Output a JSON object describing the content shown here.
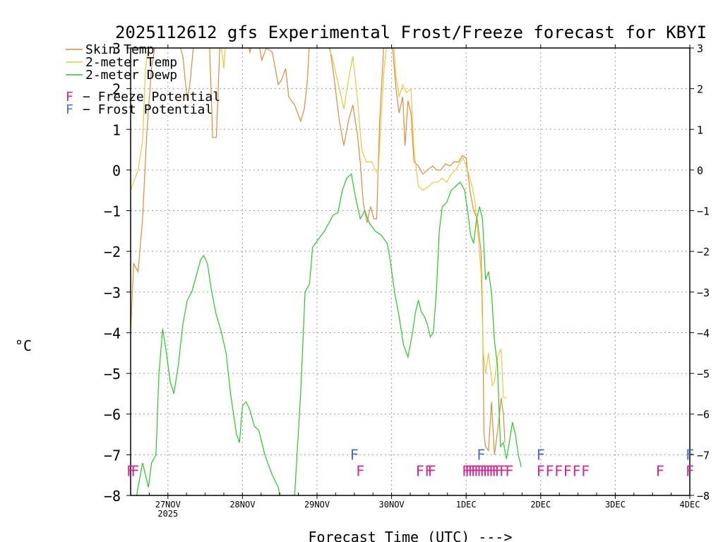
{
  "chart_data": {
    "type": "line",
    "title": "2025112612 gfs Experimental Frost/Freeze forecast for KBYI",
    "xlabel": "Forecast Time (UTC) --->",
    "ylabel": "°C",
    "ylim": [
      -8,
      3
    ],
    "xlim": [
      0.0,
      7.5
    ],
    "grid": true,
    "y_ticks": [
      -8,
      -7,
      -6,
      -5,
      -4,
      -3,
      -2,
      -1,
      0,
      1,
      2,
      3
    ],
    "y_tick_labels": [
      "−8",
      "−7",
      "−6",
      "−5",
      "−4",
      "−3",
      "−2",
      "−1",
      "0",
      "1",
      "2",
      "3"
    ],
    "x_ticks": [
      {
        "x": 0.5,
        "label": "27NOV",
        "sublabel": "2025"
      },
      {
        "x": 1.5,
        "label": "28NOV",
        "sublabel": ""
      },
      {
        "x": 2.5,
        "label": "29NOV",
        "sublabel": ""
      },
      {
        "x": 3.5,
        "label": "30NOV",
        "sublabel": ""
      },
      {
        "x": 4.5,
        "label": "1DEC",
        "sublabel": ""
      },
      {
        "x": 5.5,
        "label": "2DEC",
        "sublabel": ""
      },
      {
        "x": 6.5,
        "label": "3DEC",
        "sublabel": ""
      },
      {
        "x": 7.5,
        "label": "4DEC",
        "sublabel": ""
      }
    ],
    "colors": {
      "skin": "#e08a3c",
      "t2m": "#e8c83c",
      "dewp": "#28c828",
      "freeze": "#d02890",
      "frost": "#4a6ed0"
    },
    "legend": {
      "position": "top-left",
      "items": [
        "Skin Temp",
        "2-meter Temp",
        "2-meter Dewp"
      ],
      "marker_letter": "F",
      "freeze_text": "− Freeze Potential",
      "frost_text": "− Frost Potential"
    },
    "series": [
      {
        "name": "Skin Temp",
        "color_key": "skin",
        "points": [
          [
            0.0,
            -4.0
          ],
          [
            0.04,
            -2.3
          ],
          [
            0.1,
            -2.5
          ],
          [
            0.16,
            -1.2
          ],
          [
            0.22,
            1.0
          ],
          [
            0.28,
            2.5
          ],
          [
            0.34,
            3.2
          ],
          [
            0.62,
            3.3
          ],
          [
            0.7,
            2.8
          ],
          [
            0.76,
            1.7
          ],
          [
            0.8,
            2.2
          ],
          [
            0.86,
            3.4
          ],
          [
            1.05,
            3.5
          ],
          [
            1.1,
            0.8
          ],
          [
            1.15,
            0.8
          ],
          [
            1.2,
            3.2
          ],
          [
            1.55,
            3.3
          ],
          [
            1.6,
            2.9
          ],
          [
            1.65,
            3.2
          ],
          [
            1.72,
            3.1
          ],
          [
            1.76,
            2.7
          ],
          [
            1.82,
            3.0
          ],
          [
            1.9,
            2.9
          ],
          [
            1.95,
            2.4
          ],
          [
            1.98,
            2.1
          ],
          [
            2.02,
            2.2
          ],
          [
            2.08,
            2.5
          ],
          [
            2.12,
            1.8
          ],
          [
            2.2,
            1.6
          ],
          [
            2.28,
            1.2
          ],
          [
            2.33,
            1.5
          ],
          [
            2.37,
            2.2
          ],
          [
            2.4,
            3.2
          ],
          [
            2.65,
            3.3
          ],
          [
            2.72,
            2.4
          ],
          [
            2.8,
            1.2
          ],
          [
            2.86,
            0.6
          ],
          [
            2.92,
            1.2
          ],
          [
            2.98,
            1.6
          ],
          [
            3.04,
            0.9
          ],
          [
            3.08,
            0.2
          ],
          [
            3.12,
            -0.8
          ],
          [
            3.17,
            -1.3
          ],
          [
            3.22,
            -0.9
          ],
          [
            3.26,
            -1.2
          ],
          [
            3.3,
            -1.2
          ],
          [
            3.34,
            1.2
          ],
          [
            3.4,
            3.2
          ],
          [
            3.5,
            3.3
          ],
          [
            3.56,
            2.0
          ],
          [
            3.6,
            1.4
          ],
          [
            3.65,
            1.8
          ],
          [
            3.68,
            0.6
          ],
          [
            3.72,
            1.7
          ],
          [
            3.76,
            1.4
          ],
          [
            3.8,
            0.2
          ],
          [
            3.86,
            0.1
          ],
          [
            3.92,
            -0.1
          ],
          [
            3.98,
            0.0
          ],
          [
            4.05,
            0.1
          ],
          [
            4.1,
            0.0
          ],
          [
            4.16,
            0.0
          ],
          [
            4.22,
            0.15
          ],
          [
            4.28,
            0.1
          ],
          [
            4.34,
            0.2
          ],
          [
            4.4,
            0.2
          ],
          [
            4.45,
            0.35
          ],
          [
            4.5,
            0.3
          ],
          [
            4.55,
            -0.5
          ],
          [
            4.6,
            -1.0
          ],
          [
            4.65,
            -1.2
          ],
          [
            4.7,
            -2.0
          ],
          [
            4.72,
            -3.5
          ],
          [
            4.74,
            -6.5
          ],
          [
            4.76,
            -6.8
          ],
          [
            4.8,
            -6.9
          ],
          [
            4.84,
            -5.7
          ],
          [
            4.88,
            -7.0
          ],
          [
            4.93,
            -6.3
          ],
          [
            4.97,
            -5.6
          ],
          [
            5.0,
            -6.0
          ],
          [
            5.02,
            -6.7
          ]
        ]
      },
      {
        "name": "2-meter Temp",
        "color_key": "t2m",
        "points": [
          [
            0.0,
            -0.5
          ],
          [
            0.04,
            -0.3
          ],
          [
            0.1,
            0.0
          ],
          [
            0.16,
            0.7
          ],
          [
            0.2,
            2.5
          ],
          [
            0.26,
            3.3
          ],
          [
            1.2,
            3.3
          ],
          [
            1.25,
            2.5
          ],
          [
            1.28,
            3.3
          ],
          [
            2.6,
            3.3
          ],
          [
            2.7,
            2.8
          ],
          [
            2.8,
            2.0
          ],
          [
            2.86,
            1.5
          ],
          [
            2.92,
            2.2
          ],
          [
            2.98,
            2.8
          ],
          [
            3.04,
            1.8
          ],
          [
            3.1,
            0.5
          ],
          [
            3.16,
            0.2
          ],
          [
            3.24,
            0.2
          ],
          [
            3.28,
            0.0
          ],
          [
            3.32,
            -0.1
          ],
          [
            3.35,
            1.0
          ],
          [
            3.4,
            2.5
          ],
          [
            3.45,
            3.3
          ],
          [
            3.52,
            3.3
          ],
          [
            3.56,
            2.3
          ],
          [
            3.6,
            1.8
          ],
          [
            3.65,
            2.1
          ],
          [
            3.7,
            1.9
          ],
          [
            3.76,
            2.0
          ],
          [
            3.8,
            0.5
          ],
          [
            3.86,
            -0.4
          ],
          [
            3.92,
            -0.5
          ],
          [
            4.0,
            -0.4
          ],
          [
            4.06,
            -0.3
          ],
          [
            4.12,
            -0.3
          ],
          [
            4.18,
            -0.2
          ],
          [
            4.24,
            -0.3
          ],
          [
            4.3,
            -0.1
          ],
          [
            4.36,
            0.0
          ],
          [
            4.42,
            0.2
          ],
          [
            4.46,
            0.3
          ],
          [
            4.52,
            0.0
          ],
          [
            4.58,
            -0.4
          ],
          [
            4.62,
            -0.8
          ],
          [
            4.66,
            -1.6
          ],
          [
            4.7,
            -2.5
          ],
          [
            4.73,
            -4.5
          ],
          [
            4.76,
            -5.0
          ],
          [
            4.8,
            -4.5
          ],
          [
            4.85,
            -5.3
          ],
          [
            4.88,
            -5.2
          ],
          [
            4.92,
            -4.6
          ],
          [
            4.97,
            -4.4
          ],
          [
            5.0,
            -5.6
          ],
          [
            5.04,
            -5.6
          ]
        ]
      },
      {
        "name": "2-meter Dewp",
        "color_key": "dewp",
        "points": [
          [
            0.08,
            -8.0
          ],
          [
            0.12,
            -7.6
          ],
          [
            0.16,
            -7.2
          ],
          [
            0.2,
            -7.5
          ],
          [
            0.24,
            -7.8
          ],
          [
            0.28,
            -7.2
          ],
          [
            0.34,
            -7.0
          ],
          [
            0.38,
            -5.0
          ],
          [
            0.43,
            -3.9
          ],
          [
            0.48,
            -4.5
          ],
          [
            0.53,
            -5.2
          ],
          [
            0.58,
            -5.5
          ],
          [
            0.64,
            -4.8
          ],
          [
            0.7,
            -3.8
          ],
          [
            0.76,
            -3.2
          ],
          [
            0.82,
            -3.0
          ],
          [
            0.88,
            -2.6
          ],
          [
            0.94,
            -2.2
          ],
          [
            0.98,
            -2.1
          ],
          [
            1.03,
            -2.3
          ],
          [
            1.08,
            -2.9
          ],
          [
            1.14,
            -3.5
          ],
          [
            1.22,
            -4.0
          ],
          [
            1.28,
            -4.5
          ],
          [
            1.34,
            -5.5
          ],
          [
            1.42,
            -6.5
          ],
          [
            1.46,
            -6.7
          ],
          [
            1.5,
            -5.8
          ],
          [
            1.55,
            -5.7
          ],
          [
            1.6,
            -5.9
          ],
          [
            1.66,
            -6.3
          ],
          [
            1.72,
            -6.4
          ],
          [
            1.8,
            -7.0
          ],
          [
            1.9,
            -7.5
          ],
          [
            1.98,
            -7.8
          ],
          [
            2.0,
            -8.0
          ]
        ]
      },
      {
        "name": "2-meter Dewp",
        "color_key": "dewp",
        "points": [
          [
            2.2,
            -8.0
          ],
          [
            2.28,
            -5.5
          ],
          [
            2.34,
            -3.0
          ],
          [
            2.4,
            -2.8
          ],
          [
            2.44,
            -1.9
          ],
          [
            2.52,
            -1.7
          ],
          [
            2.6,
            -1.5
          ],
          [
            2.66,
            -1.3
          ],
          [
            2.72,
            -1.1
          ],
          [
            2.78,
            -1.05
          ],
          [
            2.84,
            -0.5
          ],
          [
            2.9,
            -0.2
          ],
          [
            2.96,
            -0.1
          ],
          [
            3.02,
            -0.7
          ],
          [
            3.08,
            -1.2
          ],
          [
            3.14,
            -1.0
          ],
          [
            3.2,
            -1.3
          ],
          [
            3.28,
            -1.5
          ],
          [
            3.36,
            -1.6
          ],
          [
            3.44,
            -1.8
          ],
          [
            3.48,
            -2.2
          ],
          [
            3.54,
            -3.0
          ],
          [
            3.6,
            -3.6
          ],
          [
            3.66,
            -4.3
          ],
          [
            3.72,
            -4.6
          ],
          [
            3.78,
            -4.0
          ],
          [
            3.82,
            -3.5
          ],
          [
            3.86,
            -3.2
          ],
          [
            3.9,
            -3.5
          ],
          [
            3.94,
            -3.6
          ],
          [
            3.98,
            -3.8
          ],
          [
            4.02,
            -4.1
          ],
          [
            4.06,
            -4.0
          ],
          [
            4.1,
            -3.0
          ],
          [
            4.14,
            -1.5
          ],
          [
            4.18,
            -0.9
          ],
          [
            4.24,
            -0.8
          ],
          [
            4.3,
            -0.5
          ],
          [
            4.36,
            -0.4
          ],
          [
            4.42,
            -0.3
          ],
          [
            4.48,
            -0.5
          ],
          [
            4.52,
            -1.0
          ],
          [
            4.56,
            -1.6
          ],
          [
            4.6,
            -1.8
          ],
          [
            4.64,
            -1.2
          ],
          [
            4.68,
            -0.9
          ],
          [
            4.72,
            -1.2
          ],
          [
            4.76,
            -2.7
          ],
          [
            4.8,
            -2.5
          ],
          [
            4.84,
            -3.0
          ],
          [
            4.88,
            -4.2
          ],
          [
            4.92,
            -4.8
          ],
          [
            4.96,
            -6.8
          ],
          [
            5.0,
            -6.7
          ],
          [
            5.04,
            -7.1
          ],
          [
            5.08,
            -6.7
          ],
          [
            5.12,
            -6.2
          ],
          [
            5.16,
            -6.5
          ],
          [
            5.2,
            -7.0
          ],
          [
            5.24,
            -7.3
          ]
        ]
      }
    ],
    "freeze_x": [
      0.0,
      0.06,
      3.08,
      3.88,
      4.0,
      4.04,
      4.5,
      4.54,
      4.58,
      4.62,
      4.66,
      4.7,
      4.74,
      4.78,
      4.82,
      4.86,
      4.9,
      4.94,
      5.0,
      5.08,
      5.5,
      5.62,
      5.74,
      5.86,
      5.98,
      6.1,
      7.1,
      7.5
    ],
    "frost_x": [
      3.0,
      4.7,
      5.5,
      7.5
    ]
  }
}
